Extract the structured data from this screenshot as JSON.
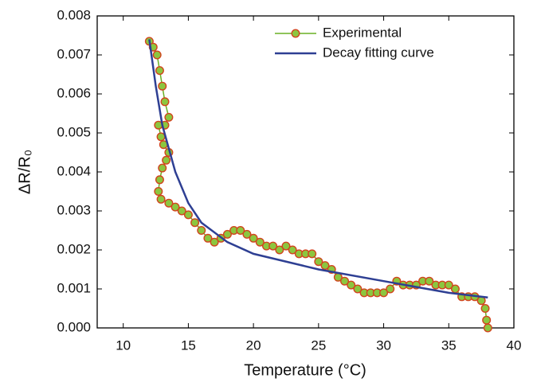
{
  "chart_data": {
    "type": "line",
    "xlabel": "Temperature (°C)",
    "ylabel": "ΔR/R₀",
    "xlim": [
      8,
      40
    ],
    "xticks": [
      10,
      15,
      20,
      25,
      30,
      35,
      40
    ],
    "ylim": [
      0,
      0.008
    ],
    "yticks": [
      {
        "value": 0,
        "label": "0.000"
      },
      {
        "value": 0.001,
        "label": "0.001"
      },
      {
        "value": 0.002,
        "label": "0.002"
      },
      {
        "value": 0.003,
        "label": "0.003"
      },
      {
        "value": 0.004,
        "label": "0.004"
      },
      {
        "value": 0.005,
        "label": "0.005"
      },
      {
        "value": 0.006,
        "label": "0.006"
      },
      {
        "value": 0.007,
        "label": "0.007"
      },
      {
        "value": 0.008,
        "label": "0.008"
      }
    ],
    "legend": "upper right",
    "series": [
      {
        "name": "Experimental",
        "color": "#6ab023",
        "marker": "circle",
        "marker_color": "#8cc63f",
        "marker_edge": "#d2441e",
        "x": [
          12.0,
          12.3,
          12.6,
          12.8,
          13.0,
          13.2,
          13.5,
          13.2,
          12.7,
          12.9,
          13.1,
          13.5,
          13.3,
          13.0,
          12.8,
          12.7,
          12.9,
          13.5,
          14.0,
          14.5,
          15.0,
          15.5,
          16.0,
          16.5,
          17.0,
          17.5,
          18.0,
          18.5,
          19.0,
          19.5,
          20.0,
          20.5,
          21.0,
          21.5,
          22.0,
          22.5,
          23.0,
          23.5,
          24.0,
          24.5,
          25.0,
          25.5,
          26.0,
          26.5,
          27.0,
          27.5,
          28.0,
          28.5,
          29.0,
          29.5,
          30.0,
          30.5,
          31.0,
          31.5,
          32.0,
          32.5,
          33.0,
          33.5,
          34.0,
          34.5,
          35.0,
          35.5,
          36.0,
          36.5,
          37.0,
          37.5,
          37.8,
          37.9,
          38.0
        ],
        "values": [
          0.00735,
          0.0072,
          0.007,
          0.0066,
          0.0062,
          0.0058,
          0.0054,
          0.0052,
          0.0052,
          0.0049,
          0.0047,
          0.0045,
          0.0043,
          0.0041,
          0.0038,
          0.0035,
          0.0033,
          0.0032,
          0.0031,
          0.003,
          0.0029,
          0.0027,
          0.0025,
          0.0023,
          0.0022,
          0.0023,
          0.0024,
          0.0025,
          0.0025,
          0.0024,
          0.0023,
          0.0022,
          0.0021,
          0.0021,
          0.002,
          0.0021,
          0.002,
          0.0019,
          0.0019,
          0.0019,
          0.0017,
          0.0016,
          0.0015,
          0.0013,
          0.0012,
          0.0011,
          0.001,
          0.0009,
          0.0009,
          0.0009,
          0.0009,
          0.001,
          0.0012,
          0.0011,
          0.0011,
          0.0011,
          0.0012,
          0.0012,
          0.0011,
          0.0011,
          0.0011,
          0.001,
          0.0008,
          0.0008,
          0.0008,
          0.0007,
          0.0005,
          0.0002,
          0.0
        ]
      },
      {
        "name": "Decay fitting curve",
        "color": "#2e3f93",
        "x": [
          12,
          12.5,
          13,
          14,
          15,
          16,
          18,
          20,
          25,
          30,
          35,
          38
        ],
        "values": [
          0.0074,
          0.0062,
          0.0052,
          0.004,
          0.0032,
          0.0027,
          0.0022,
          0.0019,
          0.0015,
          0.0012,
          0.0009,
          0.00078
        ]
      }
    ]
  }
}
